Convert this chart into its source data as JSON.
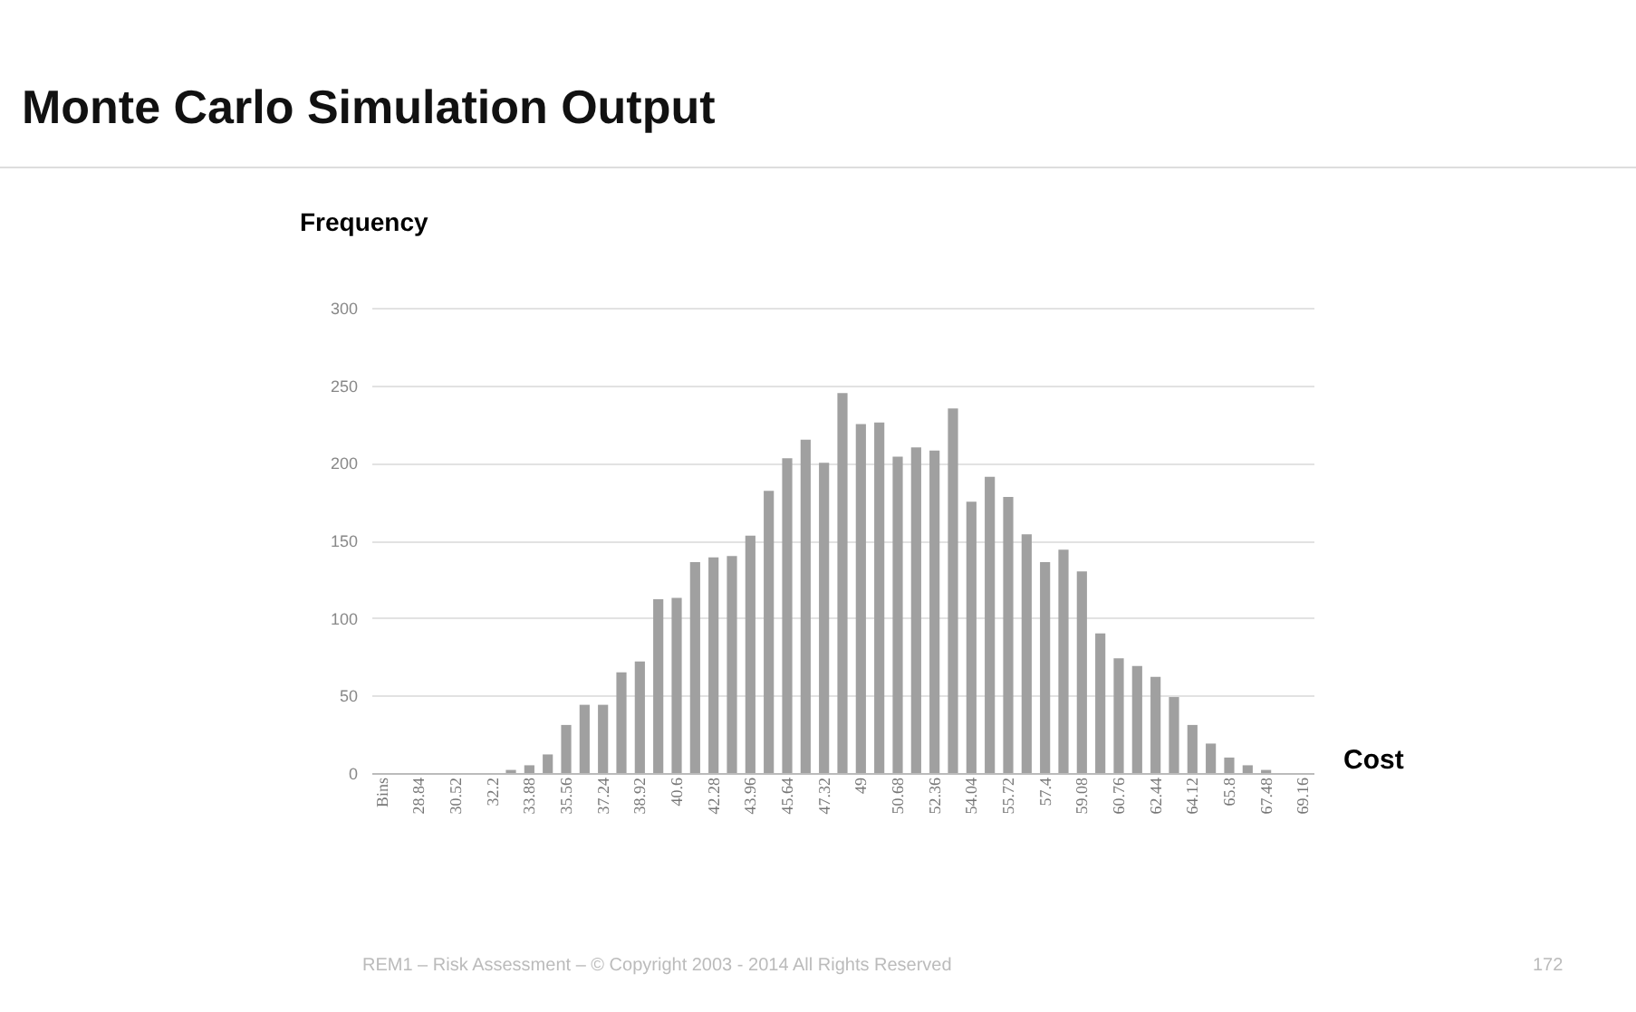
{
  "chart_data": {
    "type": "bar",
    "title": "Monte Carlo Simulation Output",
    "xlabel": "Cost",
    "ylabel": "Frequency",
    "categories": [
      "Bins",
      null,
      "28.84",
      null,
      "30.52",
      null,
      "32.2",
      null,
      "33.88",
      null,
      "35.56",
      null,
      "37.24",
      null,
      "38.92",
      null,
      "40.6",
      null,
      "42.28",
      null,
      "43.96",
      null,
      "45.64",
      null,
      "47.32",
      null,
      "49",
      null,
      "50.68",
      null,
      "52.36",
      null,
      "54.04",
      null,
      "55.72",
      null,
      "57.4",
      null,
      "59.08",
      null,
      "60.76",
      null,
      "62.44",
      null,
      "64.12",
      null,
      "65.8",
      null,
      "67.48",
      null,
      "69.16"
    ],
    "values": [
      0,
      0,
      0,
      0,
      0,
      0,
      0,
      2,
      5,
      12,
      31,
      44,
      44,
      65,
      72,
      112,
      113,
      136,
      139,
      140,
      153,
      182,
      203,
      215,
      200,
      245,
      225,
      226,
      204,
      210,
      208,
      235,
      175,
      191,
      178,
      154,
      136,
      144,
      130,
      90,
      74,
      69,
      62,
      49,
      31,
      19,
      10,
      5,
      2,
      0,
      0
    ],
    "color": "#a0a0a0",
    "ylim": [
      0,
      300
    ],
    "yticks": [
      0,
      50,
      100,
      150,
      200,
      250,
      300
    ],
    "grid": "y",
    "annotations": [
      "REM1 – Risk Assessment – © Copyright 2003 - 2014 All Rights Reserved",
      "172"
    ]
  }
}
